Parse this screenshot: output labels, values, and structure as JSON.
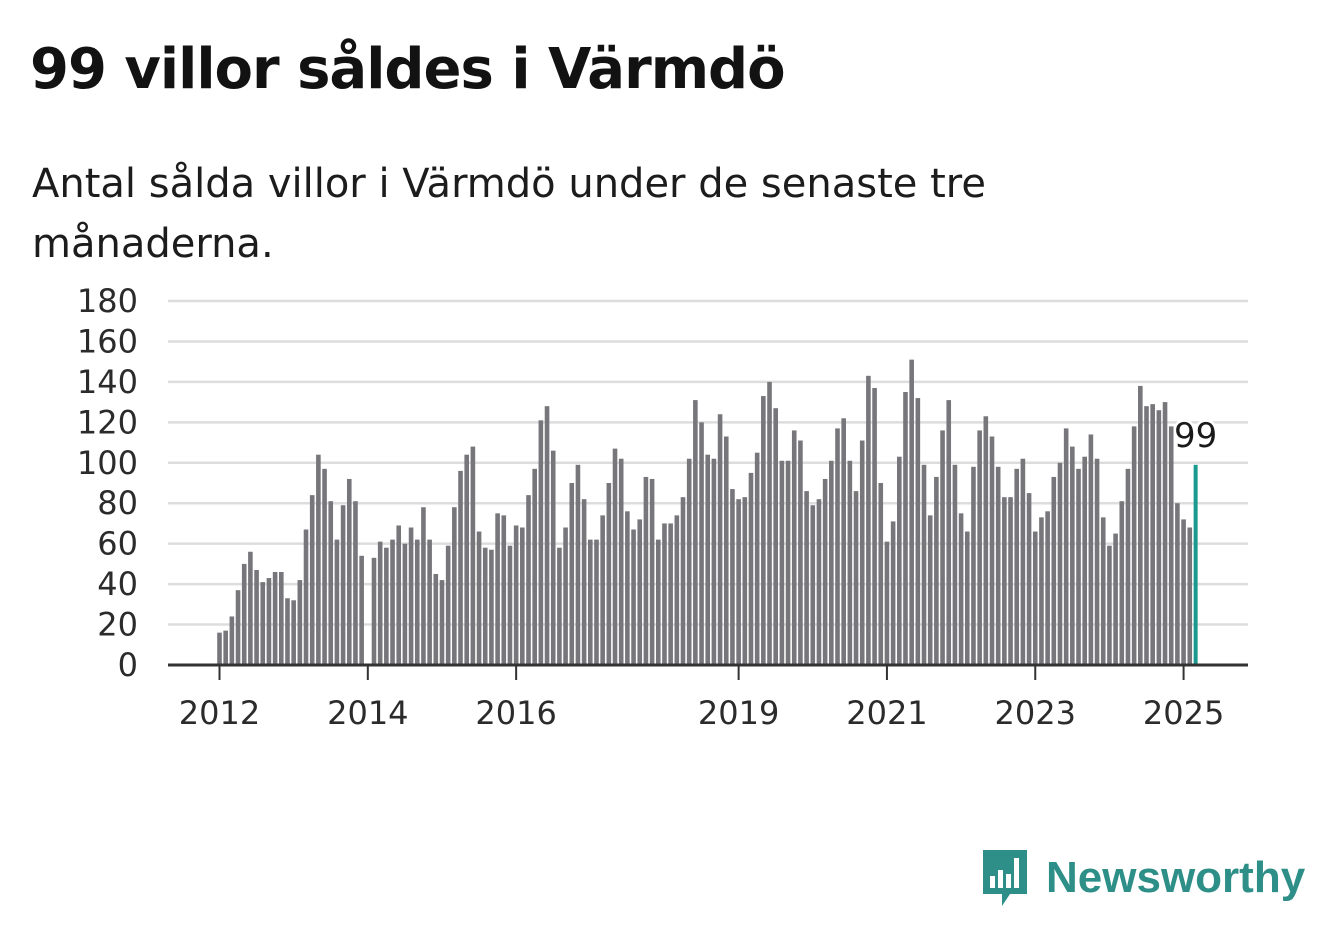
{
  "header": {
    "title": "99 villor såldes i Värmdö",
    "subtitle": "Antal sålda villor i Värmdö under de senaste tre månaderna."
  },
  "brand": {
    "name": "Newsworthy",
    "icon": "bar-chart-speech-bubble-icon",
    "color": "#2e8f88"
  },
  "colors": {
    "bar": "#77767b",
    "highlight": "#1a9a8e",
    "grid": "#dddddd",
    "axis": "#333333"
  },
  "chart_data": {
    "type": "bar",
    "ylim": [
      0,
      180
    ],
    "yticks": [
      0,
      20,
      40,
      60,
      80,
      100,
      120,
      140,
      160,
      180
    ],
    "xticks": [
      {
        "label": "2012",
        "month": 2012.0
      },
      {
        "label": "2014",
        "month": 2014.0
      },
      {
        "label": "2016",
        "month": 2016.0
      },
      {
        "label": "2019",
        "month": 2019.0
      },
      {
        "label": "2021",
        "month": 2021.0
      },
      {
        "label": "2023",
        "month": 2023.0
      },
      {
        "label": "2025",
        "month": 2025.0
      }
    ],
    "start": "2012-01",
    "annotation": "99",
    "highlight_index": 158,
    "values": [
      16,
      17,
      24,
      37,
      50,
      56,
      47,
      41,
      43,
      46,
      46,
      33,
      32,
      42,
      67,
      84,
      104,
      97,
      81,
      62,
      79,
      92,
      81,
      54,
      0,
      53,
      61,
      58,
      62,
      69,
      60,
      68,
      62,
      78,
      62,
      45,
      42,
      59,
      78,
      96,
      104,
      108,
      66,
      58,
      57,
      75,
      74,
      59,
      69,
      68,
      84,
      97,
      121,
      128,
      106,
      58,
      68,
      90,
      99,
      82,
      62,
      62,
      74,
      90,
      107,
      102,
      76,
      67,
      72,
      93,
      92,
      62,
      70,
      70,
      74,
      83,
      102,
      131,
      120,
      104,
      102,
      124,
      113,
      87,
      82,
      83,
      95,
      105,
      133,
      140,
      127,
      101,
      101,
      116,
      111,
      86,
      79,
      82,
      92,
      101,
      117,
      122,
      101,
      86,
      111,
      143,
      137,
      90,
      61,
      71,
      103,
      135,
      151,
      132,
      99,
      74,
      93,
      116,
      131,
      99,
      75,
      66,
      98,
      116,
      123,
      113,
      98,
      83,
      83,
      97,
      102,
      85,
      66,
      73,
      76,
      93,
      100,
      117,
      108,
      97,
      103,
      114,
      102,
      73,
      59,
      65,
      81,
      97,
      118,
      138,
      128,
      129,
      126,
      130,
      118,
      80,
      72,
      68,
      99
    ]
  }
}
